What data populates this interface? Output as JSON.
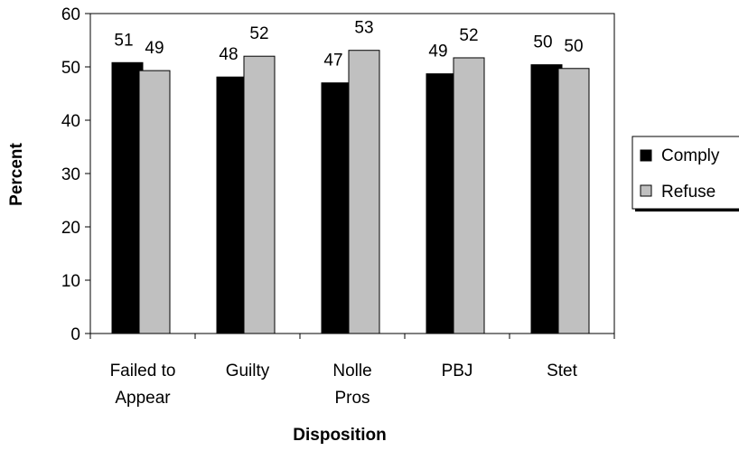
{
  "chart_data": {
    "type": "bar",
    "title": "",
    "xlabel": "Disposition",
    "ylabel": "Percent",
    "ylim": [
      0,
      60
    ],
    "yticks": [
      0,
      10,
      20,
      30,
      40,
      50,
      60
    ],
    "grid": false,
    "legend_position": "right",
    "categories": [
      [
        "Failed to",
        "Appear"
      ],
      [
        "Guilty"
      ],
      [
        "Nolle",
        "Pros"
      ],
      [
        "PBJ"
      ],
      [
        "Stet"
      ]
    ],
    "series": [
      {
        "name": "Comply",
        "color": "#000000",
        "values": [
          51,
          48,
          47,
          49,
          50
        ],
        "exact": [
          50.8,
          48.1,
          47.0,
          48.7,
          50.4
        ]
      },
      {
        "name": "Refuse",
        "color": "#c0c0c0",
        "values": [
          49,
          52,
          53,
          52,
          50
        ],
        "exact": [
          49.3,
          52.0,
          53.1,
          51.7,
          49.7
        ]
      }
    ]
  }
}
